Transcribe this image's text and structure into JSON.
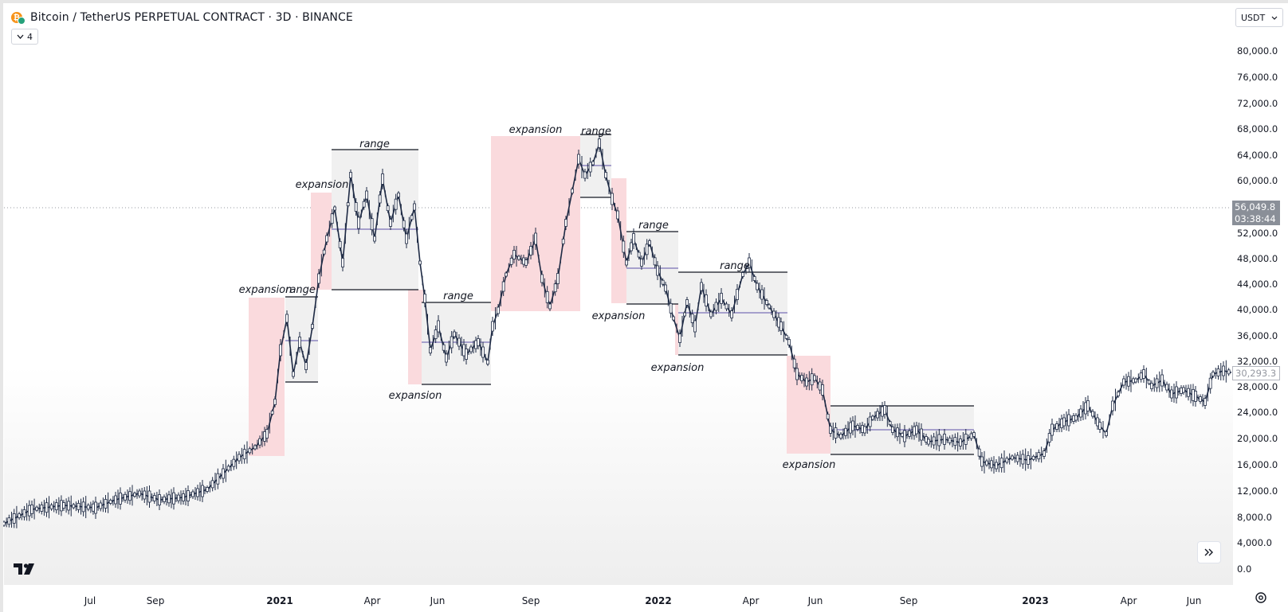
{
  "header": {
    "symbol_title": "Bitcoin / TetherUS PERPETUAL CONTRACT · 3D · BINANCE",
    "indicators_count": "4",
    "currency": "USDT",
    "icon_names": [
      "bitcoin-logo-icon",
      "chevron-down-icon",
      "tradingview-logo-icon",
      "double-chevron-right-icon",
      "settings-icon"
    ]
  },
  "price_axis": {
    "labels": [
      "80,000.0",
      "76,000.0",
      "72,000.0",
      "68,000.0",
      "64,000.0",
      "60,000.0",
      "52,000.0",
      "48,000.0",
      "44,000.0",
      "40,000.0",
      "36,000.0",
      "32,000.0",
      "28,000.0",
      "24,000.0",
      "20,000.0",
      "16,000.0",
      "12,000.0",
      "8,000.0",
      "4,000.0",
      "0.0"
    ],
    "crosshair_price": "56,049.8",
    "countdown": "03:38:44",
    "last_price": "30,293.3"
  },
  "time_axis": {
    "labels": [
      {
        "text": "Jul",
        "bold": false
      },
      {
        "text": "Sep",
        "bold": false
      },
      {
        "text": "2021",
        "bold": true
      },
      {
        "text": "Apr",
        "bold": false
      },
      {
        "text": "Jun",
        "bold": false
      },
      {
        "text": "Sep",
        "bold": false
      },
      {
        "text": "2022",
        "bold": true
      },
      {
        "text": "Apr",
        "bold": false
      },
      {
        "text": "Jun",
        "bold": false
      },
      {
        "text": "Sep",
        "bold": false
      },
      {
        "text": "2023",
        "bold": true
      },
      {
        "text": "Apr",
        "bold": false
      },
      {
        "text": "Jun",
        "bold": false
      }
    ]
  },
  "annotations": [
    "expansion",
    "range",
    "expansion",
    "range",
    "range",
    "expansion",
    "expansion",
    "range",
    "range",
    "expansion",
    "range",
    "expansion",
    "expansion"
  ],
  "colors": {
    "expansion_zone": "#fadadd",
    "range_zone": "#f0f0f0",
    "range_midline": "#5b4fa8",
    "candle": "#1e2a44"
  }
}
